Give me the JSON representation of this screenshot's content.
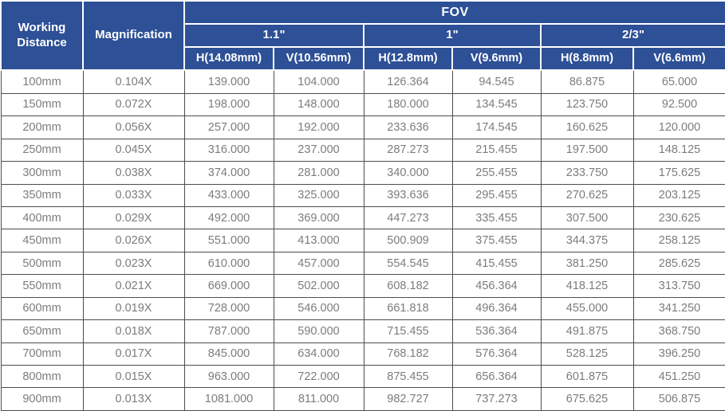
{
  "table": {
    "header": {
      "working_distance": "Working Distance",
      "magnification": "Magnification",
      "fov": "FOV",
      "groups": [
        {
          "label": "1.1\"",
          "h": "H(14.08mm)",
          "v": "V(10.56mm)"
        },
        {
          "label": "1\"",
          "h": "H(12.8mm)",
          "v": "V(9.6mm)"
        },
        {
          "label": "2/3\"",
          "h": "H(8.8mm)",
          "v": "V(6.6mm)"
        }
      ]
    },
    "rows": [
      [
        "100mm",
        "0.104X",
        "139.000",
        "104.000",
        "126.364",
        "94.545",
        "86.875",
        "65.000"
      ],
      [
        "150mm",
        "0.072X",
        "198.000",
        "148.000",
        "180.000",
        "134.545",
        "123.750",
        "92.500"
      ],
      [
        "200mm",
        "0.056X",
        "257.000",
        "192.000",
        "233.636",
        "174.545",
        "160.625",
        "120.000"
      ],
      [
        "250mm",
        "0.045X",
        "316.000",
        "237.000",
        "287.273",
        "215.455",
        "197.500",
        "148.125"
      ],
      [
        "300mm",
        "0.038X",
        "374.000",
        "281.000",
        "340.000",
        "255.455",
        "233.750",
        "175.625"
      ],
      [
        "350mm",
        "0.033X",
        "433.000",
        "325.000",
        "393.636",
        "295.455",
        "270.625",
        "203.125"
      ],
      [
        "400mm",
        "0.029X",
        "492.000",
        "369.000",
        "447.273",
        "335.455",
        "307.500",
        "230.625"
      ],
      [
        "450mm",
        "0.026X",
        "551.000",
        "413.000",
        "500.909",
        "375.455",
        "344.375",
        "258.125"
      ],
      [
        "500mm",
        "0.023X",
        "610.000",
        "457.000",
        "554.545",
        "415.455",
        "381.250",
        "285.625"
      ],
      [
        "550mm",
        "0.021X",
        "669.000",
        "502.000",
        "608.182",
        "456.364",
        "418.125",
        "313.750"
      ],
      [
        "600mm",
        "0.019X",
        "728.000",
        "546.000",
        "661.818",
        "496.364",
        "455.000",
        "341.250"
      ],
      [
        "650mm",
        "0.018X",
        "787.000",
        "590.000",
        "715.455",
        "536.364",
        "491.875",
        "368.750"
      ],
      [
        "700mm",
        "0.017X",
        "845.000",
        "634.000",
        "768.182",
        "576.364",
        "528.125",
        "396.250"
      ],
      [
        "800mm",
        "0.015X",
        "963.000",
        "722.000",
        "875.455",
        "656.364",
        "601.875",
        "451.250"
      ],
      [
        "900mm",
        "0.013X",
        "1081.000",
        "811.000",
        "982.727",
        "737.273",
        "675.625",
        "506.875"
      ]
    ]
  },
  "colors": {
    "header_bg": "#2d5096",
    "header_text": "#ffffff",
    "body_text": "#7c7c7c",
    "grid": "#4d4d4d"
  }
}
